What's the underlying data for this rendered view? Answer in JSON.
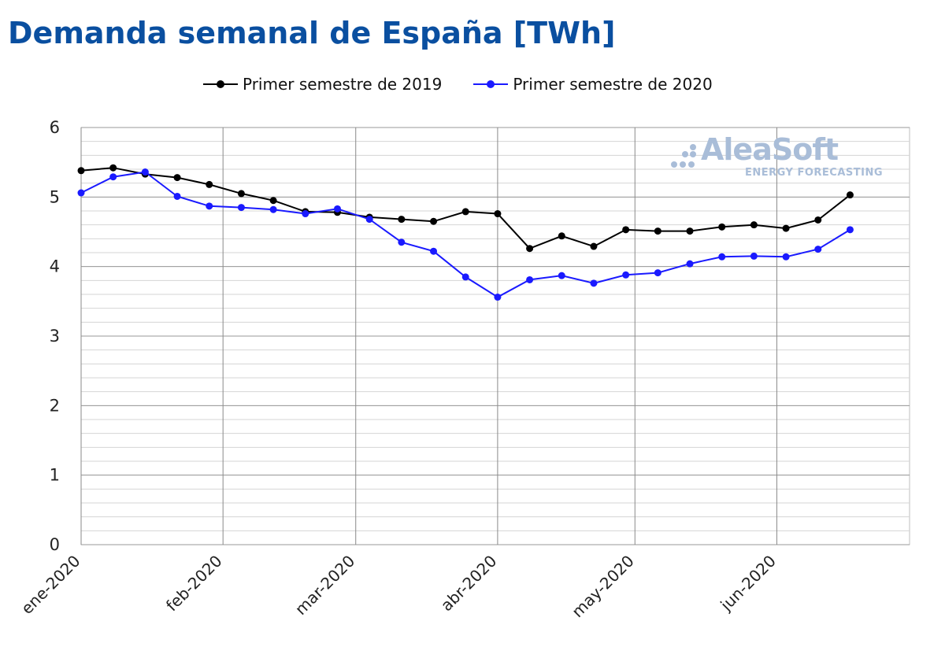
{
  "title": "Demanda semanal de España [TWh]",
  "watermark": {
    "name": "AleaSoft",
    "tagline": "ENERGY FORECASTING"
  },
  "colors": {
    "title": "#0a4fa0",
    "series_2019": "#000000",
    "series_2020": "#1a1aff",
    "watermark": "#a9bdd8"
  },
  "chart_data": {
    "type": "line",
    "title": "Demanda semanal de España [TWh]",
    "xlabel": "",
    "ylabel": "",
    "ylim": [
      0,
      6
    ],
    "yticks": [
      "0",
      "1",
      "2",
      "3",
      "4",
      "5",
      "6"
    ],
    "xlim": [
      "2020-01-01",
      "2020-06-30"
    ],
    "xtick_labels": [
      {
        "date": "2020-01-01",
        "label": "ene-2020"
      },
      {
        "date": "2020-02-01",
        "label": "feb-2020"
      },
      {
        "date": "2020-03-01",
        "label": "mar-2020"
      },
      {
        "date": "2020-04-01",
        "label": "abr-2020"
      },
      {
        "date": "2020-05-01",
        "label": "may-2020"
      },
      {
        "date": "2020-06-01",
        "label": "jun-2020"
      }
    ],
    "grid": true,
    "legend_position": "top",
    "x": [
      "2020-01-01",
      "2020-01-08",
      "2020-01-15",
      "2020-01-22",
      "2020-01-29",
      "2020-02-05",
      "2020-02-12",
      "2020-02-19",
      "2020-02-26",
      "2020-03-04",
      "2020-03-11",
      "2020-03-18",
      "2020-03-25",
      "2020-04-01",
      "2020-04-08",
      "2020-04-15",
      "2020-04-22",
      "2020-04-29",
      "2020-05-06",
      "2020-05-13",
      "2020-05-20",
      "2020-05-27",
      "2020-06-03",
      "2020-06-10",
      "2020-06-17"
    ],
    "series": [
      {
        "name": "Primer semestre de 2019",
        "values": [
          5.38,
          5.42,
          5.33,
          5.28,
          5.18,
          5.05,
          4.95,
          4.79,
          4.78,
          4.71,
          4.68,
          4.65,
          4.79,
          4.76,
          4.26,
          4.44,
          4.29,
          4.53,
          4.51,
          4.51,
          4.57,
          4.6,
          4.55,
          4.67,
          5.03
        ]
      },
      {
        "name": "Primer semestre de 2020",
        "values": [
          5.06,
          5.29,
          5.36,
          5.01,
          4.87,
          4.85,
          4.82,
          4.76,
          4.83,
          4.68,
          4.35,
          4.22,
          3.85,
          3.56,
          3.81,
          3.87,
          3.76,
          3.88,
          3.91,
          4.04,
          4.14,
          4.15,
          4.14,
          4.25,
          4.53
        ]
      }
    ]
  }
}
